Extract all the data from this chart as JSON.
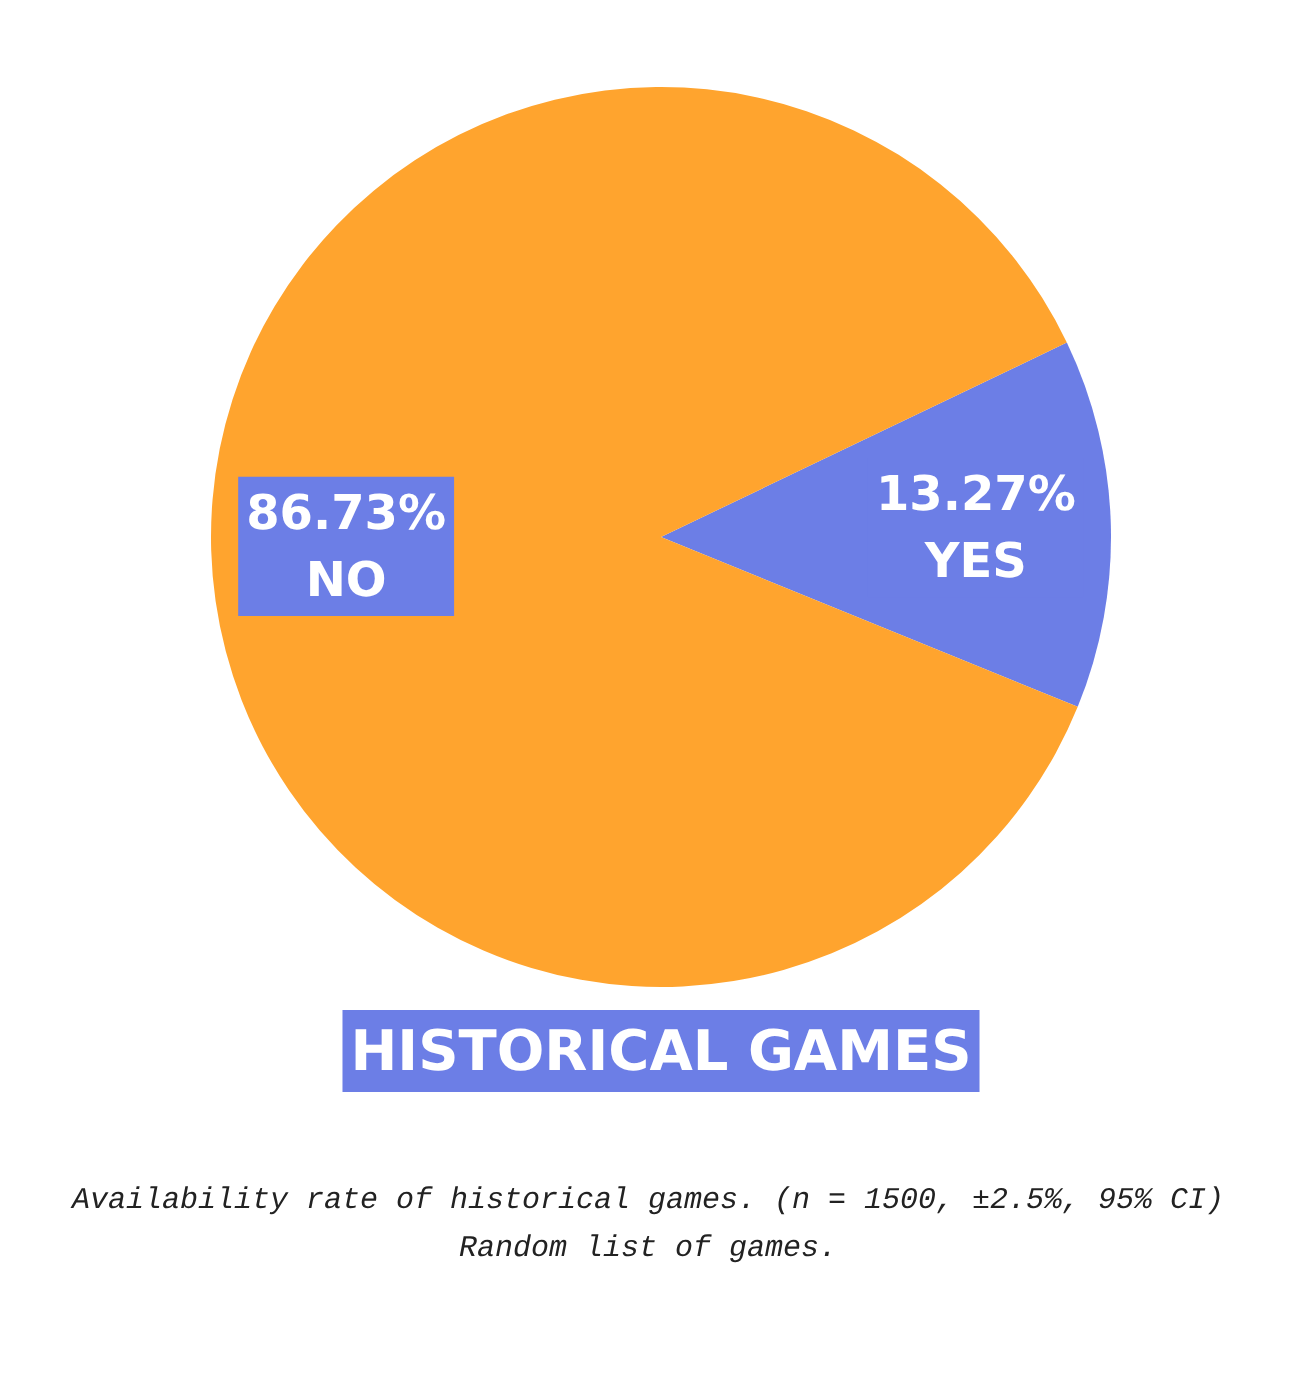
{
  "chart_data": {
    "type": "pie",
    "title": "HISTORICAL GAMES",
    "categories": [
      "YES",
      "NO"
    ],
    "values": [
      13.27,
      86.73
    ],
    "colors": [
      "#6c7ee6",
      "#ffa42e"
    ],
    "value_labels": [
      "13.27%",
      "86.73%"
    ],
    "annotations": [
      "Availability rate of historical games. (n = 1500, ±2.5%, 95% CI)",
      "Random list of games."
    ]
  }
}
